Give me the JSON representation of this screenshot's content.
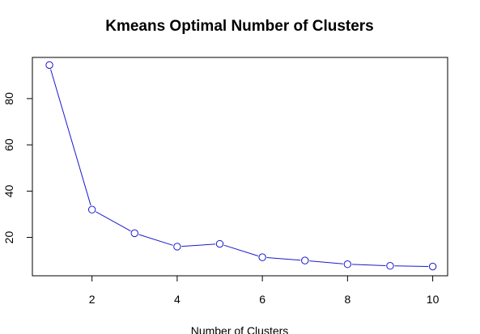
{
  "chart_data": {
    "type": "line",
    "title": "Kmeans Optimal Number of Clusters",
    "xlabel": "Number of Clusters",
    "ylabel": "",
    "x": [
      1,
      2,
      3,
      4,
      5,
      6,
      7,
      8,
      9,
      10
    ],
    "series": [
      {
        "values": [
          94.5,
          32.0,
          21.8,
          16.0,
          17.2,
          11.4,
          10.0,
          8.4,
          7.7,
          7.4
        ]
      }
    ],
    "xlim": [
      0.6,
      10.35
    ],
    "ylim": [
      3.4,
      97.8
    ],
    "x_ticks": [
      2,
      4,
      6,
      8,
      10
    ],
    "x_tick_labels": [
      "2",
      "4",
      "6",
      "8",
      "10"
    ],
    "y_ticks": [
      20,
      40,
      60,
      80
    ],
    "y_tick_labels": [
      "20",
      "40",
      "60",
      "80"
    ],
    "grid": false,
    "legend": "none",
    "line_color": "#1a1acc",
    "marker": "open-circle"
  }
}
